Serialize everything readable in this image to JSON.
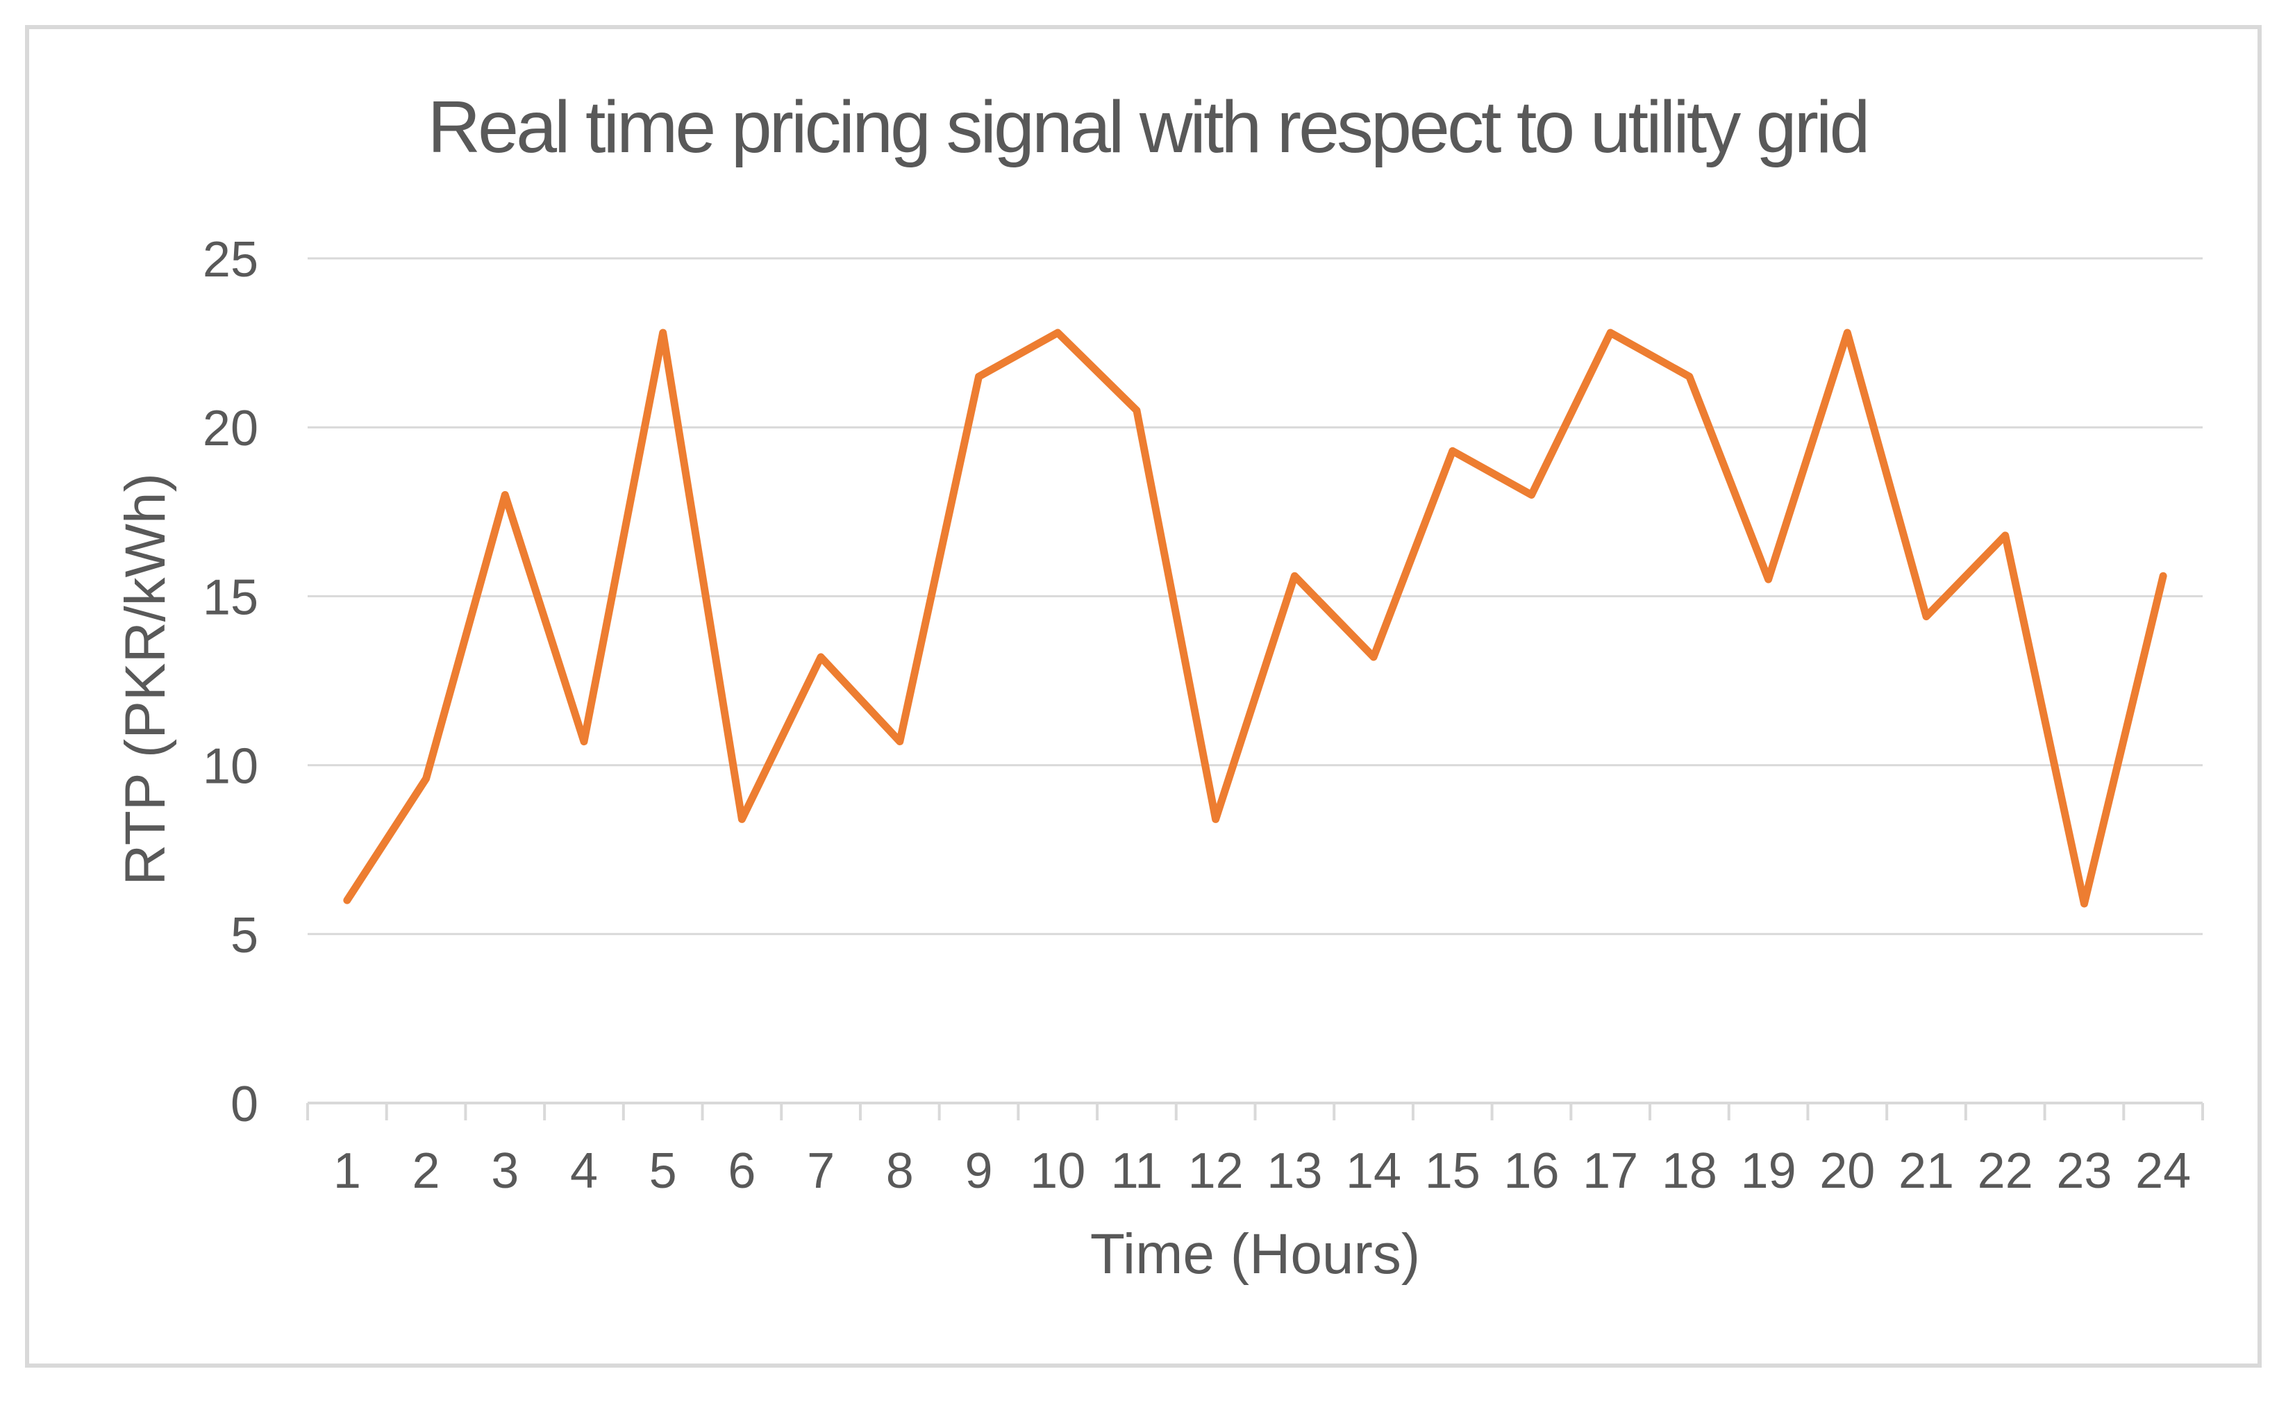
{
  "chart_data": {
    "type": "line",
    "title": "Real time pricing signal with respect to utility grid",
    "xlabel": "Time (Hours)",
    "ylabel": "RTP (PKR/kWh)",
    "categories": [
      "1",
      "2",
      "3",
      "4",
      "5",
      "6",
      "7",
      "8",
      "9",
      "10",
      "11",
      "12",
      "13",
      "14",
      "15",
      "16",
      "17",
      "18",
      "19",
      "20",
      "21",
      "22",
      "23",
      "24"
    ],
    "series": [
      {
        "name": "Real time pricing signal",
        "values": [
          6.0,
          9.6,
          18.0,
          10.7,
          22.8,
          8.4,
          13.2,
          10.7,
          21.5,
          22.8,
          20.5,
          8.4,
          15.6,
          13.2,
          19.3,
          18.0,
          22.8,
          21.5,
          15.5,
          22.8,
          14.4,
          16.8,
          5.9,
          15.6
        ]
      }
    ],
    "ylim": [
      0,
      25
    ],
    "y_ticks": [
      0,
      5,
      10,
      15,
      20,
      25
    ],
    "grid": "horizontal",
    "legend": "none",
    "colors": {
      "line": "#ED7D31",
      "text": "#595959",
      "grid": "#D9D9D9",
      "frame_border": "#D9D9D9",
      "background": "#FFFFFF"
    }
  }
}
